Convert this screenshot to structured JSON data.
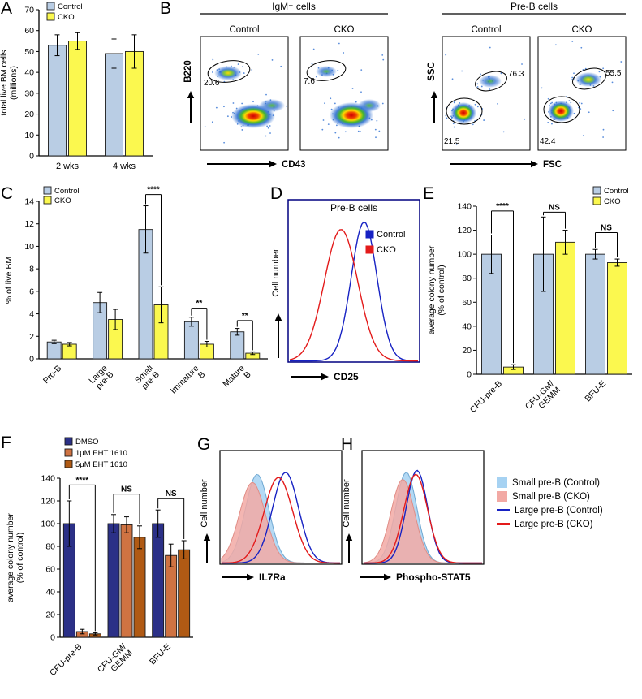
{
  "panel_letters": {
    "A": "A",
    "B": "B",
    "C": "C",
    "D": "D",
    "E": "E",
    "F": "F",
    "G": "G",
    "H": "H"
  },
  "colors": {
    "control_fill": "#b9cde4",
    "cko_fill": "#fbf84f",
    "dmso_fill": "#2b3087",
    "eht1um_fill": "#cf7342",
    "eht5um_fill": "#b05a14",
    "control_line": "#1722c3",
    "cko_line": "#e31a1a",
    "small_preb_control_fill": "#a6d2f2",
    "small_preb_cko_fill": "#f2a9a4"
  },
  "chart_data": [
    {
      "panel": "A",
      "type": "bar",
      "ylabel": "total live BM cells\n(millions)",
      "ylim": [
        0,
        70
      ],
      "yticks": [
        0,
        10,
        20,
        30,
        40,
        50,
        60,
        70
      ],
      "categories": [
        "2 wks",
        "4 wks"
      ],
      "series": [
        {
          "name": "Control",
          "color": "#b9cde4",
          "values": [
            53,
            49
          ],
          "errors": [
            5,
            7
          ]
        },
        {
          "name": "CKO",
          "color": "#fbf84f",
          "values": [
            55,
            50
          ],
          "errors": [
            4,
            8
          ]
        }
      ],
      "legend_position": "top-left",
      "grid": false
    },
    {
      "panel": "B",
      "type": "scatter",
      "subtype": "flow-cytometry-density",
      "groups": [
        {
          "title": "IgM⁻ cells",
          "xlabel": "CD43",
          "ylabel": "B220",
          "plots": [
            {
              "name": "Control",
              "gates": [
                {
                  "value": "20.6",
                  "region": "upper-left"
                }
              ]
            },
            {
              "name": "CKO",
              "gates": [
                {
                  "value": "7.6",
                  "region": "upper-left"
                }
              ]
            }
          ]
        },
        {
          "title": "Pre-B cells",
          "xlabel": "FSC",
          "ylabel": "SSC",
          "plots": [
            {
              "name": "Control",
              "gates": [
                {
                  "value": "21.5",
                  "region": "upper-right"
                },
                {
                  "value": "76.3",
                  "region": "lower-left"
                }
              ]
            },
            {
              "name": "CKO",
              "gates": [
                {
                  "value": "42.4",
                  "region": "upper-right"
                },
                {
                  "value": "55.5",
                  "region": "lower-left"
                }
              ]
            }
          ]
        }
      ]
    },
    {
      "panel": "C",
      "type": "bar",
      "ylabel": "% of live BM",
      "ylim": [
        0,
        14
      ],
      "yticks": [
        0,
        2,
        4,
        6,
        8,
        10,
        12,
        14
      ],
      "categories": [
        "Pro-B",
        "Large\npre-B",
        "Small\npre-B",
        "Immature\nB",
        "Mature\nB"
      ],
      "series": [
        {
          "name": "Control",
          "color": "#b9cde4",
          "values": [
            1.5,
            5.0,
            11.5,
            3.3,
            2.4
          ],
          "errors": [
            0.15,
            0.9,
            2.1,
            0.4,
            0.3
          ]
        },
        {
          "name": "CKO",
          "color": "#fbf84f",
          "values": [
            1.3,
            3.5,
            4.8,
            1.3,
            0.5
          ],
          "errors": [
            0.15,
            0.9,
            1.6,
            0.25,
            0.12
          ]
        }
      ],
      "annotations": [
        {
          "category_index": 2,
          "label": "****",
          "bracket_y": 14.6
        },
        {
          "category_index": 3,
          "label": "**",
          "bracket_y": 4.5
        },
        {
          "category_index": 4,
          "label": "**",
          "bracket_y": 3.4
        }
      ],
      "legend_position": "top-left"
    },
    {
      "panel": "D",
      "type": "histogram",
      "title": "Pre-B cells",
      "xlabel": "CD25",
      "ylabel": "Cell number",
      "series": [
        {
          "name": "Control",
          "color": "#1722c3",
          "fill": "none",
          "peak": 0.58,
          "sigma": 0.1,
          "height": 0.93
        },
        {
          "name": "CKO",
          "color": "#e31a1a",
          "fill": "none",
          "peak": 0.4,
          "sigma": 0.13,
          "height": 0.88
        }
      ],
      "legend_position": "right-inside"
    },
    {
      "panel": "E",
      "type": "bar",
      "ylabel": "average colony number\n(% of control)",
      "ylim": [
        0,
        140
      ],
      "yticks": [
        0,
        20,
        40,
        60,
        80,
        100,
        120,
        140
      ],
      "categories": [
        "CFU-pre-B",
        "CFU-GM/\nGEMM",
        "BFU-E"
      ],
      "series": [
        {
          "name": "Control",
          "color": "#b9cde4",
          "values": [
            100,
            100,
            100
          ],
          "errors": [
            16,
            31,
            4
          ]
        },
        {
          "name": "CKO",
          "color": "#fbf84f",
          "values": [
            6,
            110,
            93
          ],
          "errors": [
            2,
            10,
            3
          ]
        }
      ],
      "annotations": [
        {
          "category_index": 0,
          "label": "****",
          "bracket_y": 136
        },
        {
          "category_index": 1,
          "label": "NS",
          "bracket_y": 135
        },
        {
          "category_index": 2,
          "label": "NS",
          "bracket_y": 118
        }
      ],
      "legend_position": "top-right"
    },
    {
      "panel": "F",
      "type": "bar",
      "ylabel": "average colony number\n(% of control)",
      "ylim": [
        0,
        140
      ],
      "yticks": [
        0,
        20,
        40,
        60,
        80,
        100,
        120,
        140
      ],
      "categories": [
        "CFU-pre-B",
        "CFU-GM/\nGEMM",
        "BFU-E"
      ],
      "series": [
        {
          "name": "DMSO",
          "color": "#2b3087",
          "values": [
            100,
            100,
            100
          ],
          "errors": [
            20,
            8,
            12
          ]
        },
        {
          "name": "1μM EHT 1610",
          "color": "#cf7342",
          "values": [
            5,
            99,
            72
          ],
          "errors": [
            2,
            7,
            10
          ]
        },
        {
          "name": "5μM EHT 1610",
          "color": "#b05a14",
          "values": [
            3,
            88,
            77
          ],
          "errors": [
            1,
            10,
            8
          ]
        }
      ],
      "annotations": [
        {
          "category_index": 0,
          "label": "****",
          "bracket_y": 134
        },
        {
          "category_index": 1,
          "label": "NS",
          "bracket_y": 126
        },
        {
          "category_index": 2,
          "label": "NS",
          "bracket_y": 122
        }
      ],
      "legend_position": "top-left-above"
    },
    {
      "panel": "G",
      "type": "histogram",
      "xlabel": "IL7Ra",
      "ylabel": "Cell number",
      "series": [
        {
          "name": "Small pre-B (Control)",
          "color": "#6fa8d2",
          "fill": "#a6d2f2",
          "peak": 0.3,
          "sigma": 0.1,
          "height": 0.88
        },
        {
          "name": "Small pre-B (CKO)",
          "color": "#e08d86",
          "fill": "#f2a9a4",
          "peak": 0.26,
          "sigma": 0.11,
          "height": 0.8
        },
        {
          "name": "Large pre-B (Control)",
          "color": "#1722c3",
          "fill": "none",
          "peak": 0.54,
          "sigma": 0.11,
          "height": 0.9
        },
        {
          "name": "Large pre-B (CKO)",
          "color": "#e31a1a",
          "fill": "none",
          "peak": 0.48,
          "sigma": 0.12,
          "height": 0.85
        }
      ]
    },
    {
      "panel": "H",
      "type": "histogram",
      "xlabel": "Phospho-STAT5",
      "ylabel": "Cell number",
      "series": [
        {
          "name": "Small pre-B (Control)",
          "color": "#6fa8d2",
          "fill": "#a6d2f2",
          "peak": 0.36,
          "sigma": 0.09,
          "height": 0.9
        },
        {
          "name": "Small pre-B (CKO)",
          "color": "#e08d86",
          "fill": "#f2a9a4",
          "peak": 0.33,
          "sigma": 0.1,
          "height": 0.83
        },
        {
          "name": "Large pre-B (Control)",
          "color": "#1722c3",
          "fill": "none",
          "peak": 0.45,
          "sigma": 0.09,
          "height": 0.92
        },
        {
          "name": "Large pre-B (CKO)",
          "color": "#e31a1a",
          "fill": "none",
          "peak": 0.44,
          "sigma": 0.1,
          "height": 0.88
        }
      ]
    }
  ],
  "side_legend": {
    "items": [
      {
        "label": "Small pre-B (Control)",
        "swatch": "fill",
        "color": "#a6d2f2"
      },
      {
        "label": "Small pre-B (CKO)",
        "swatch": "fill",
        "color": "#f2a9a4"
      },
      {
        "label": "Large pre-B (Control)",
        "swatch": "line",
        "color": "#1722c3"
      },
      {
        "label": "Large pre-B (CKO)",
        "swatch": "line",
        "color": "#e31a1a"
      }
    ]
  }
}
